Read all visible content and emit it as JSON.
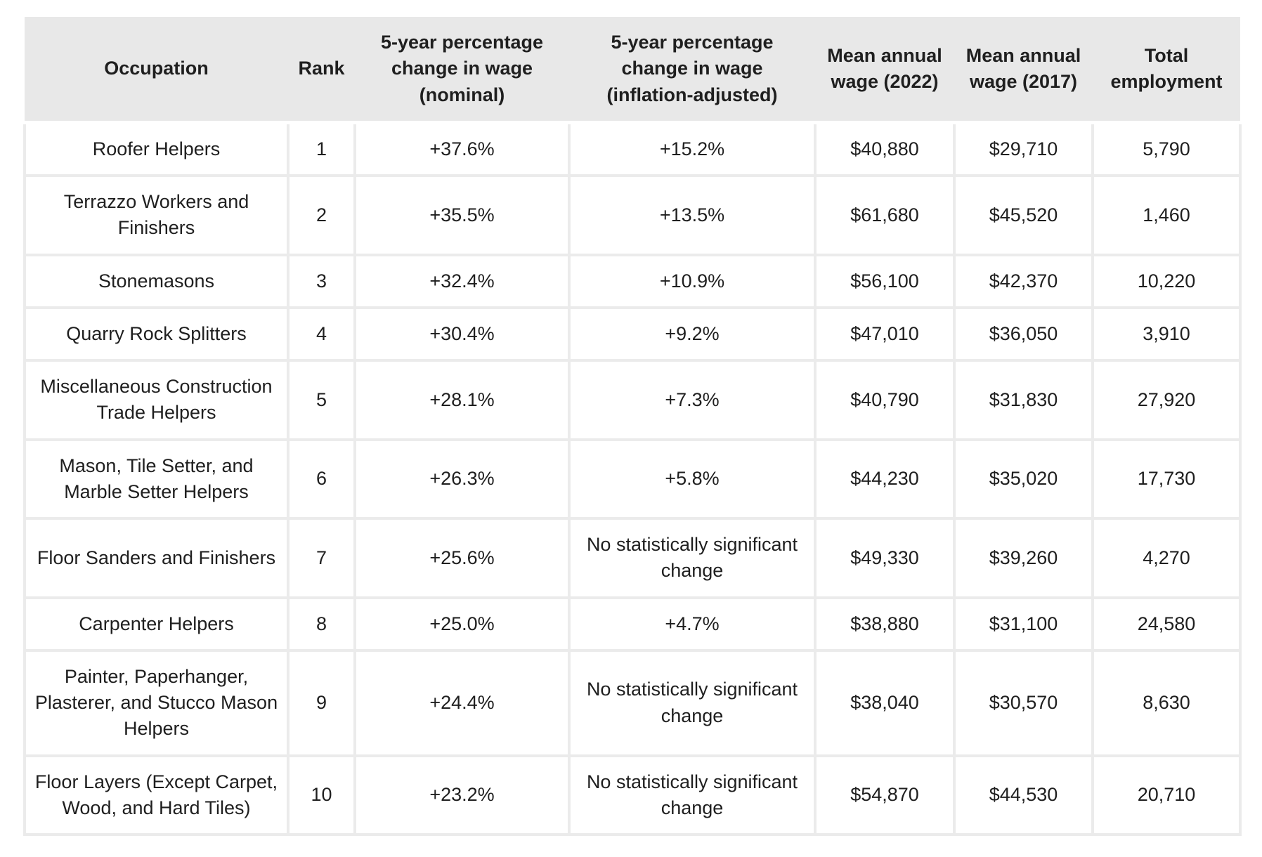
{
  "page": {
    "background": "#ffffff",
    "header_bg": "#e8e8e8",
    "border_color": "#ebebeb",
    "text_color": "#1f1f1f"
  },
  "chart_data": {
    "type": "table",
    "columns": [
      "Occupation",
      "Rank",
      "5-year percentage change in wage (nominal)",
      "5-year percentage change in wage (inflation-adjusted)",
      "Mean annual wage (2022)",
      "Mean annual wage (2017)",
      "Total employment"
    ],
    "rows": [
      [
        "Roofer Helpers",
        "1",
        "+37.6%",
        "+15.2%",
        "$40,880",
        "$29,710",
        "5,790"
      ],
      [
        "Terrazzo Workers and Finishers",
        "2",
        "+35.5%",
        "+13.5%",
        "$61,680",
        "$45,520",
        "1,460"
      ],
      [
        "Stonemasons",
        "3",
        "+32.4%",
        "+10.9%",
        "$56,100",
        "$42,370",
        "10,220"
      ],
      [
        "Quarry Rock Splitters",
        "4",
        "+30.4%",
        "+9.2%",
        "$47,010",
        "$36,050",
        "3,910"
      ],
      [
        "Miscellaneous Construction Trade Helpers",
        "5",
        "+28.1%",
        "+7.3%",
        "$40,790",
        "$31,830",
        "27,920"
      ],
      [
        "Mason, Tile Setter, and Marble Setter Helpers",
        "6",
        "+26.3%",
        "+5.8%",
        "$44,230",
        "$35,020",
        "17,730"
      ],
      [
        "Floor Sanders and Finishers",
        "7",
        "+25.6%",
        "No statistically significant change",
        "$49,330",
        "$39,260",
        "4,270"
      ],
      [
        "Carpenter Helpers",
        "8",
        "+25.0%",
        "+4.7%",
        "$38,880",
        "$31,100",
        "24,580"
      ],
      [
        "Painter, Paperhanger, Plasterer, and Stucco Mason Helpers",
        "9",
        "+24.4%",
        "No statistically significant change",
        "$38,040",
        "$30,570",
        "8,630"
      ],
      [
        "Floor Layers (Except Carpet, Wood, and Hard Tiles)",
        "10",
        "+23.2%",
        "No statistically significant change",
        "$54,870",
        "$44,530",
        "20,710"
      ]
    ]
  }
}
